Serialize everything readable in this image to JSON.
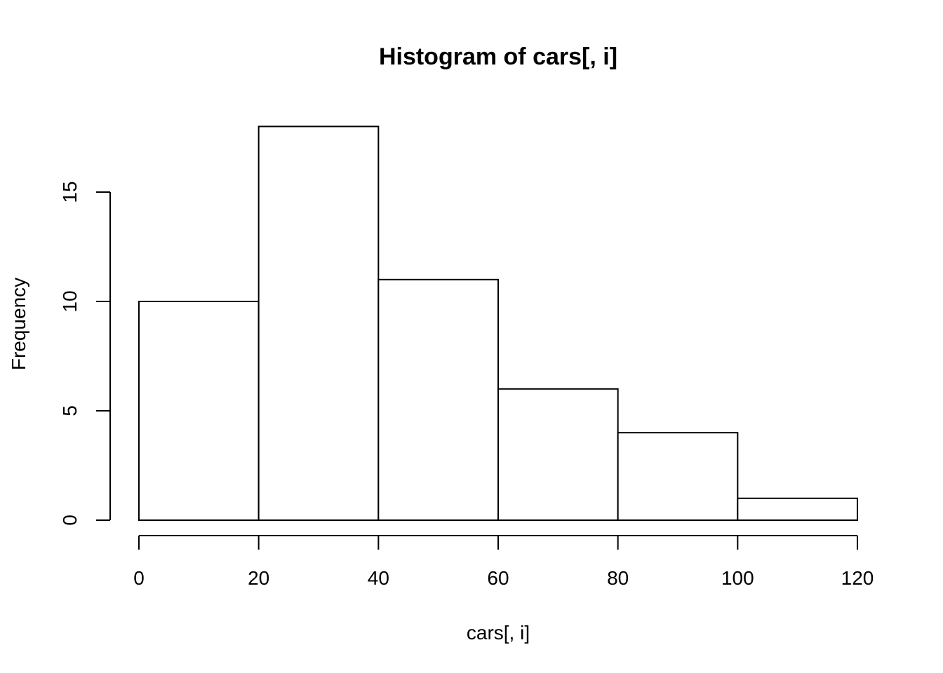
{
  "chart_data": {
    "type": "bar",
    "title": "Histogram of cars[, i]",
    "xlabel": "cars[, i]",
    "ylabel": "Frequency",
    "bins": [
      {
        "from": 0,
        "to": 20,
        "count": 10
      },
      {
        "from": 20,
        "to": 40,
        "count": 18
      },
      {
        "from": 40,
        "to": 60,
        "count": 11
      },
      {
        "from": 60,
        "to": 80,
        "count": 6
      },
      {
        "from": 80,
        "to": 100,
        "count": 4
      },
      {
        "from": 100,
        "to": 120,
        "count": 1
      }
    ],
    "xlim": [
      0,
      120
    ],
    "ylim": [
      0,
      18
    ],
    "x_ticks": [
      0,
      20,
      40,
      60,
      80,
      100,
      120
    ],
    "x_tick_labels": [
      "0",
      "20",
      "40",
      "60",
      "80",
      "100",
      "120"
    ],
    "y_ticks": [
      0,
      5,
      10,
      15
    ],
    "y_tick_labels": [
      "0",
      "5",
      "10",
      "15"
    ],
    "grid": false,
    "legend": "none",
    "colors": {
      "bar_fill": "#ffffff",
      "bar_stroke": "#000000"
    }
  }
}
